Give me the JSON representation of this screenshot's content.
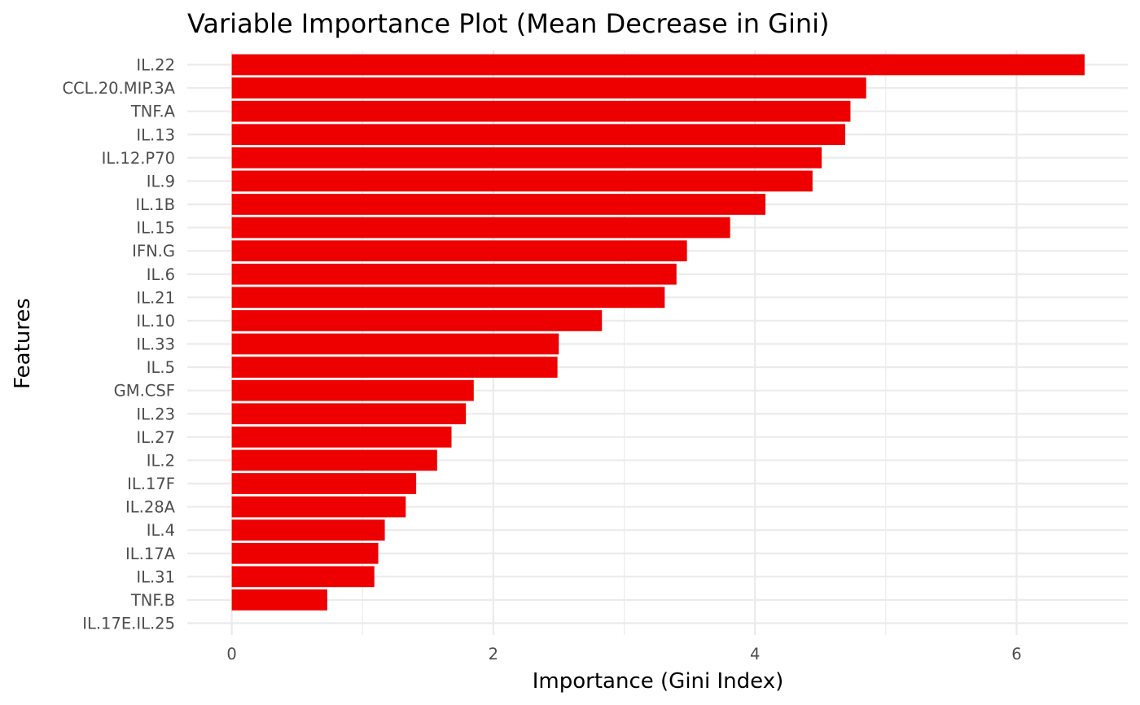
{
  "chart_data": {
    "type": "bar",
    "orientation": "horizontal",
    "title": "Variable Importance Plot (Mean Decrease in Gini)",
    "xlabel": "Importance (Gini Index)",
    "ylabel": "Features",
    "xlim": [
      -0.34,
      6.85
    ],
    "x_ticks": [
      0,
      2,
      4,
      6
    ],
    "x_tick_labels": [
      "0",
      "2",
      "4",
      "6"
    ],
    "grid": true,
    "bar_color": "#ee0000",
    "categories": [
      "IL.22",
      "CCL.20.MIP.3A",
      "TNF.A",
      "IL.13",
      "IL.12.P70",
      "IL.9",
      "IL.1B",
      "IL.15",
      "IFN.G",
      "IL.6",
      "IL.21",
      "IL.10",
      "IL.33",
      "IL.5",
      "GM.CSF",
      "IL.23",
      "IL.27",
      "IL.2",
      "IL.17F",
      "IL.28A",
      "IL.4",
      "IL.17A",
      "IL.31",
      "TNF.B",
      "IL.17E.IL.25"
    ],
    "values": [
      6.52,
      4.85,
      4.73,
      4.69,
      4.51,
      4.44,
      4.08,
      3.81,
      3.48,
      3.4,
      3.31,
      2.83,
      2.5,
      2.49,
      1.85,
      1.79,
      1.68,
      1.57,
      1.41,
      1.33,
      1.17,
      1.12,
      1.09,
      0.73,
      0.0
    ]
  }
}
